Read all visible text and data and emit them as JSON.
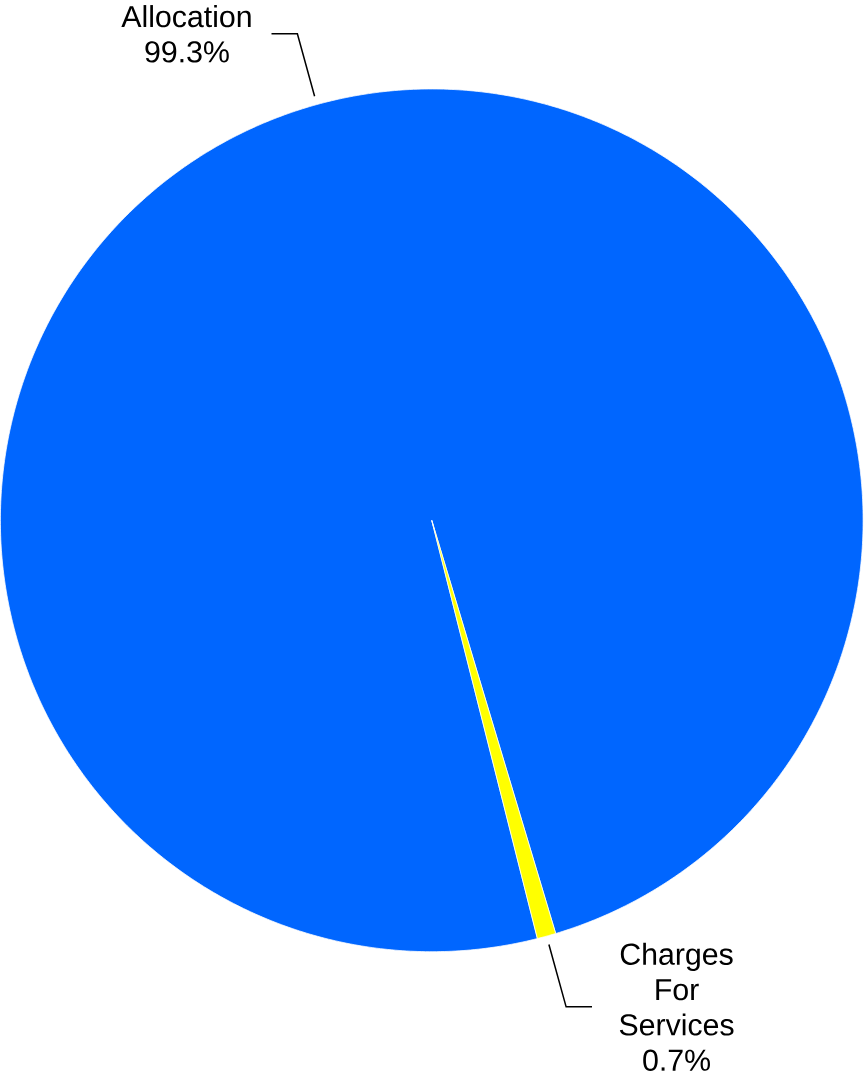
{
  "chart_data": {
    "type": "pie",
    "categories": [
      "Allocation",
      "Charges For Services"
    ],
    "values": [
      99.3,
      0.7
    ],
    "colors": [
      "#0066ff",
      "#ffff00"
    ],
    "value_labels": [
      "99.3%",
      "0.7%"
    ]
  }
}
